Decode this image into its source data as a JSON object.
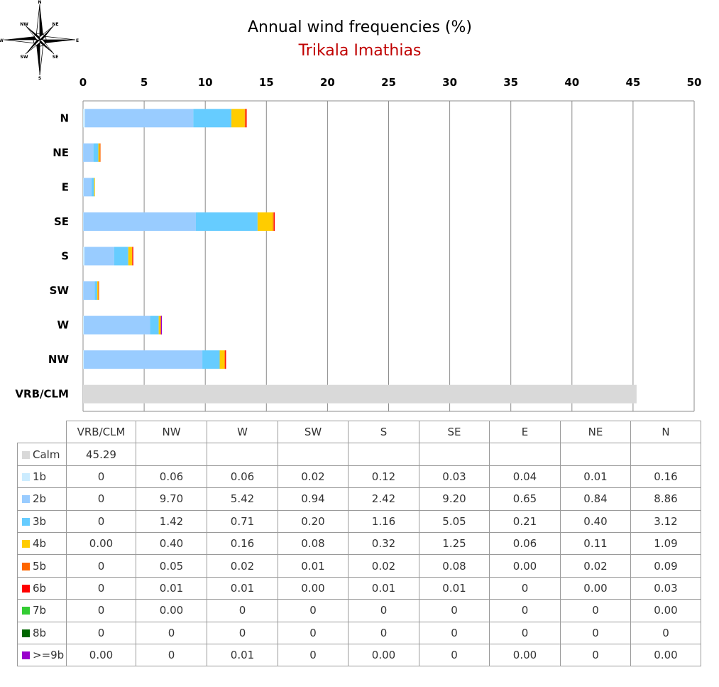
{
  "header": {
    "title": "Annual wind frequencies (%)",
    "subtitle": "Trikala Imathias"
  },
  "compass": {
    "labels": [
      "N",
      "NE",
      "E",
      "SE",
      "S",
      "SW",
      "W",
      "NW"
    ]
  },
  "colors": {
    "subtitle": "#c00000",
    "grid": "#8c8c8c",
    "Calm": "#d9d9d9",
    "1b": "#ccecff",
    "2b": "#99ccff",
    "3b": "#66ccff",
    "4b": "#ffcc00",
    "5b": "#ff6600",
    "6b": "#ff0000",
    "7b": "#33cc33",
    "8b": "#006600",
    ">=9b": "#9900cc"
  },
  "chart_data": {
    "type": "bar",
    "orientation": "horizontal",
    "stacked": true,
    "title": "Annual wind frequencies (%)",
    "subtitle": "Trikala Imathias",
    "categories": [
      "N",
      "NE",
      "E",
      "SE",
      "S",
      "SW",
      "W",
      "NW",
      "VRB/CLM"
    ],
    "xlim": [
      0,
      50
    ],
    "xticks": [
      0,
      5,
      10,
      15,
      20,
      25,
      30,
      35,
      40,
      45,
      50
    ],
    "grid": true,
    "series": [
      {
        "name": "Calm",
        "values": [
          null,
          null,
          null,
          null,
          null,
          null,
          null,
          null,
          45.29
        ]
      },
      {
        "name": "1b",
        "values": [
          0.16,
          0.01,
          0.04,
          0.03,
          0.12,
          0.02,
          0.06,
          0.06,
          0
        ]
      },
      {
        "name": "2b",
        "values": [
          8.86,
          0.84,
          0.65,
          9.2,
          2.42,
          0.94,
          5.42,
          9.7,
          0
        ]
      },
      {
        "name": "3b",
        "values": [
          3.12,
          0.4,
          0.21,
          5.05,
          1.16,
          0.2,
          0.71,
          1.42,
          0
        ]
      },
      {
        "name": "4b",
        "values": [
          1.09,
          0.11,
          0.06,
          1.25,
          0.32,
          0.08,
          0.16,
          0.4,
          0.0
        ]
      },
      {
        "name": "5b",
        "values": [
          0.09,
          0.02,
          0.0,
          0.08,
          0.02,
          0.01,
          0.02,
          0.05,
          0
        ]
      },
      {
        "name": "6b",
        "values": [
          0.03,
          0.0,
          0,
          0.01,
          0.01,
          0.0,
          0.01,
          0.01,
          0
        ]
      },
      {
        "name": "7b",
        "values": [
          0.0,
          0,
          0,
          0,
          0,
          0,
          0,
          0.0,
          0
        ]
      },
      {
        "name": "8b",
        "values": [
          0,
          0,
          0,
          0,
          0,
          0,
          0,
          0,
          0
        ]
      },
      {
        "name": ">=9b",
        "values": [
          0.0,
          0,
          0.0,
          0,
          0.0,
          0,
          0.01,
          0,
          0.0
        ]
      }
    ]
  },
  "table": {
    "columns": [
      "VRB/CLM",
      "NW",
      "W",
      "SW",
      "S",
      "SE",
      "E",
      "NE",
      "N"
    ],
    "rows": [
      {
        "label": "Calm",
        "cells": [
          "45.29",
          "",
          "",
          "",
          "",
          "",
          "",
          "",
          ""
        ]
      },
      {
        "label": "1b",
        "cells": [
          "0",
          "0.06",
          "0.06",
          "0.02",
          "0.12",
          "0.03",
          "0.04",
          "0.01",
          "0.16"
        ]
      },
      {
        "label": "2b",
        "cells": [
          "0",
          "9.70",
          "5.42",
          "0.94",
          "2.42",
          "9.20",
          "0.65",
          "0.84",
          "8.86"
        ]
      },
      {
        "label": "3b",
        "cells": [
          "0",
          "1.42",
          "0.71",
          "0.20",
          "1.16",
          "5.05",
          "0.21",
          "0.40",
          "3.12"
        ]
      },
      {
        "label": "4b",
        "cells": [
          "0.00",
          "0.40",
          "0.16",
          "0.08",
          "0.32",
          "1.25",
          "0.06",
          "0.11",
          "1.09"
        ]
      },
      {
        "label": "5b",
        "cells": [
          "0",
          "0.05",
          "0.02",
          "0.01",
          "0.02",
          "0.08",
          "0.00",
          "0.02",
          "0.09"
        ]
      },
      {
        "label": "6b",
        "cells": [
          "0",
          "0.01",
          "0.01",
          "0.00",
          "0.01",
          "0.01",
          "0",
          "0.00",
          "0.03"
        ]
      },
      {
        "label": "7b",
        "cells": [
          "0",
          "0.00",
          "0",
          "0",
          "0",
          "0",
          "0",
          "0",
          "0.00"
        ]
      },
      {
        "label": "8b",
        "cells": [
          "0",
          "0",
          "0",
          "0",
          "0",
          "0",
          "0",
          "0",
          "0"
        ]
      },
      {
        "label": ">=9b",
        "cells": [
          "0.00",
          "0",
          "0.01",
          "0",
          "0.00",
          "0",
          "0.00",
          "0",
          "0.00"
        ]
      }
    ]
  }
}
